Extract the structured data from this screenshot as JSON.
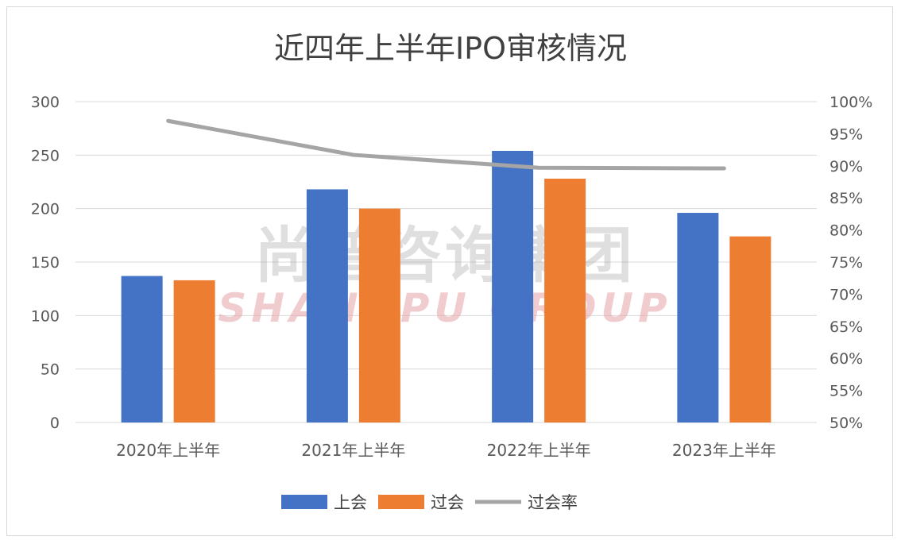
{
  "chart_data": {
    "type": "bar",
    "title": "近四年上半年IPO审核情况",
    "categories": [
      "2020年上半年",
      "2021年上半年",
      "2022年上半年",
      "2023年上半年"
    ],
    "series": [
      {
        "name": "上会",
        "type": "bar",
        "axis": "left",
        "color": "#4472c4",
        "values": [
          137,
          218,
          254,
          196
        ]
      },
      {
        "name": "过会",
        "type": "bar",
        "axis": "left",
        "color": "#ed7d31",
        "values": [
          133,
          200,
          228,
          174
        ]
      },
      {
        "name": "过会率",
        "type": "line",
        "axis": "right",
        "color": "#a5a5a5",
        "values": [
          0.97,
          0.917,
          0.897,
          0.896
        ]
      }
    ],
    "y_left": {
      "min": 0,
      "max": 300,
      "ticks": [
        "0",
        "50",
        "100",
        "150",
        "200",
        "250",
        "300"
      ]
    },
    "y_right": {
      "min": 0.5,
      "max": 1.0,
      "ticks": [
        "50%",
        "55%",
        "60%",
        "65%",
        "70%",
        "75%",
        "80%",
        "85%",
        "90%",
        "95%",
        "100%"
      ]
    },
    "grid": true,
    "legend_position": "bottom"
  },
  "watermark": {
    "line1": "尚普咨询集团",
    "line2": "SHANGPU GROUP"
  }
}
